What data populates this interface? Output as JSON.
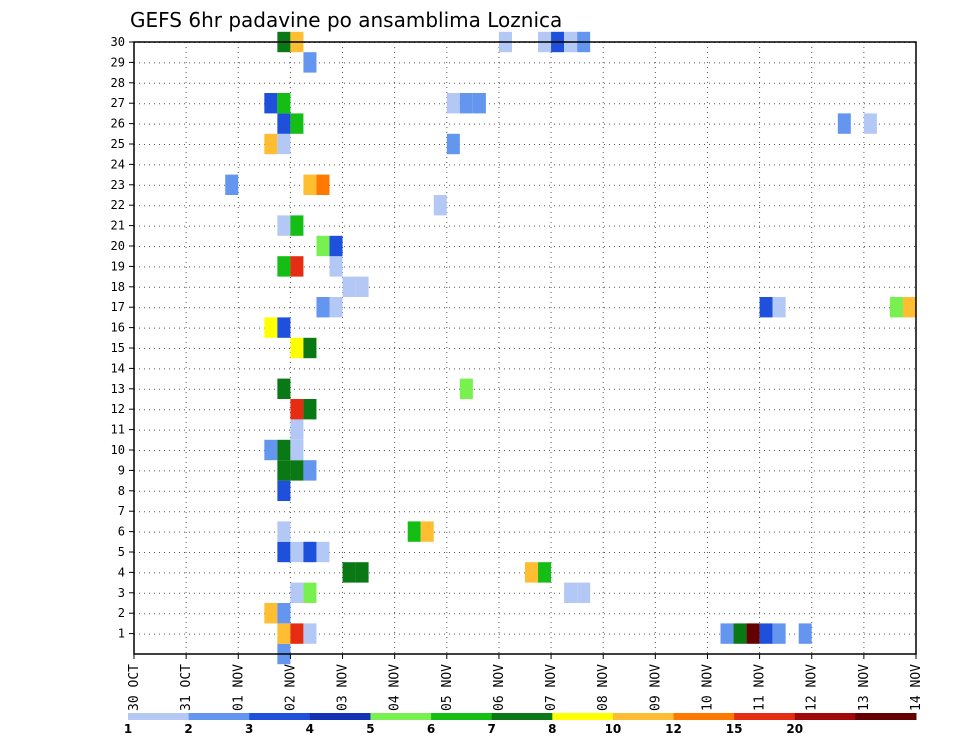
{
  "chart_data": {
    "type": "heatmap",
    "title": "GEFS 6hr padavine po ansamblima Loznica",
    "y_ticks": [
      "1",
      "2",
      "3",
      "4",
      "5",
      "6",
      "7",
      "8",
      "9",
      "10",
      "11",
      "12",
      "13",
      "14",
      "15",
      "16",
      "17",
      "18",
      "19",
      "20",
      "21",
      "22",
      "23",
      "24",
      "25",
      "26",
      "27",
      "28",
      "29",
      "30"
    ],
    "x_ticks": [
      "30 OCT",
      "31 OCT",
      "01 NOV",
      "02 NOV",
      "03 NOV",
      "04 NOV",
      "05 NOV",
      "06 NOV",
      "07 NOV",
      "08 NOV",
      "09 NOV",
      "10 NOV",
      "11 NOV",
      "12 NOV",
      "13 NOV",
      "14 NOV"
    ],
    "grid": true,
    "colorbar": {
      "labels": [
        "1",
        "2",
        "3",
        "4",
        "5",
        "6",
        "7",
        "8",
        "10",
        "12",
        "15",
        "20"
      ],
      "colors": [
        "#b4c8f5",
        "#6496f0",
        "#1e50dc",
        "#1432b4",
        "#78f050",
        "#14be14",
        "#0a7814",
        "#ffff00",
        "#ffbe32",
        "#ff7800",
        "#e62d14",
        "#a00a0a",
        "#640000"
      ]
    },
    "cells": [
      {
        "member": 0,
        "step": 11,
        "color": "#6496f0"
      },
      {
        "member": 1,
        "step": 11,
        "color": "#ffbe32"
      },
      {
        "member": 1,
        "step": 12,
        "color": "#e62d14"
      },
      {
        "member": 1,
        "step": 13,
        "color": "#b4c8f5"
      },
      {
        "member": 1,
        "step": 45,
        "color": "#6496f0"
      },
      {
        "member": 1,
        "step": 46,
        "color": "#0a7814"
      },
      {
        "member": 1,
        "step": 47,
        "color": "#640000"
      },
      {
        "member": 1,
        "step": 48,
        "color": "#1e50dc"
      },
      {
        "member": 1,
        "step": 49,
        "color": "#6496f0"
      },
      {
        "member": 1,
        "step": 51,
        "color": "#6496f0"
      },
      {
        "member": 2,
        "step": 10,
        "color": "#ffbe32"
      },
      {
        "member": 2,
        "step": 11,
        "color": "#6496f0"
      },
      {
        "member": 3,
        "step": 12,
        "color": "#b4c8f5"
      },
      {
        "member": 3,
        "step": 13,
        "color": "#78f050"
      },
      {
        "member": 3,
        "step": 33,
        "color": "#b4c8f5"
      },
      {
        "member": 3,
        "step": 34,
        "color": "#b4c8f5"
      },
      {
        "member": 4,
        "step": 16,
        "color": "#0a7814"
      },
      {
        "member": 4,
        "step": 17,
        "color": "#0a7814"
      },
      {
        "member": 4,
        "step": 30,
        "color": "#ffbe32"
      },
      {
        "member": 4,
        "step": 31,
        "color": "#14be14"
      },
      {
        "member": 5,
        "step": 11,
        "color": "#1e50dc"
      },
      {
        "member": 5,
        "step": 12,
        "color": "#b4c8f5"
      },
      {
        "member": 5,
        "step": 13,
        "color": "#1e50dc"
      },
      {
        "member": 5,
        "step": 14,
        "color": "#b4c8f5"
      },
      {
        "member": 6,
        "step": 11,
        "color": "#b4c8f5"
      },
      {
        "member": 6,
        "step": 21,
        "color": "#14be14"
      },
      {
        "member": 6,
        "step": 22,
        "color": "#ffbe32"
      },
      {
        "member": 8,
        "step": 11,
        "color": "#1e50dc"
      },
      {
        "member": 9,
        "step": 11,
        "color": "#0a7814"
      },
      {
        "member": 9,
        "step": 12,
        "color": "#0a7814"
      },
      {
        "member": 9,
        "step": 13,
        "color": "#6496f0"
      },
      {
        "member": 10,
        "step": 10,
        "color": "#6496f0"
      },
      {
        "member": 10,
        "step": 11,
        "color": "#0a7814"
      },
      {
        "member": 10,
        "step": 12,
        "color": "#b4c8f5"
      },
      {
        "member": 11,
        "step": 12,
        "color": "#b4c8f5"
      },
      {
        "member": 12,
        "step": 12,
        "color": "#e62d14"
      },
      {
        "member": 12,
        "step": 13,
        "color": "#0a7814"
      },
      {
        "member": 13,
        "step": 11,
        "color": "#0a7814"
      },
      {
        "member": 13,
        "step": 25,
        "color": "#78f050"
      },
      {
        "member": 15,
        "step": 12,
        "color": "#ffff00"
      },
      {
        "member": 15,
        "step": 13,
        "color": "#0a7814"
      },
      {
        "member": 16,
        "step": 10,
        "color": "#ffff00"
      },
      {
        "member": 16,
        "step": 11,
        "color": "#1e50dc"
      },
      {
        "member": 17,
        "step": 14,
        "color": "#6496f0"
      },
      {
        "member": 17,
        "step": 15,
        "color": "#b4c8f5"
      },
      {
        "member": 17,
        "step": 48,
        "color": "#1e50dc"
      },
      {
        "member": 17,
        "step": 49,
        "color": "#b4c8f5"
      },
      {
        "member": 17,
        "step": 58,
        "color": "#78f050"
      },
      {
        "member": 17,
        "step": 59,
        "color": "#ffbe32"
      },
      {
        "member": 18,
        "step": 16,
        "color": "#b4c8f5"
      },
      {
        "member": 18,
        "step": 17,
        "color": "#b4c8f5"
      },
      {
        "member": 19,
        "step": 11,
        "color": "#14be14"
      },
      {
        "member": 19,
        "step": 12,
        "color": "#e62d14"
      },
      {
        "member": 19,
        "step": 15,
        "color": "#b4c8f5"
      },
      {
        "member": 20,
        "step": 14,
        "color": "#78f050"
      },
      {
        "member": 20,
        "step": 15,
        "color": "#1e50dc"
      },
      {
        "member": 21,
        "step": 11,
        "color": "#b4c8f5"
      },
      {
        "member": 21,
        "step": 12,
        "color": "#14be14"
      },
      {
        "member": 22,
        "step": 23,
        "color": "#b4c8f5"
      },
      {
        "member": 23,
        "step": 7,
        "color": "#6496f0"
      },
      {
        "member": 23,
        "step": 13,
        "color": "#ffbe32"
      },
      {
        "member": 23,
        "step": 14,
        "color": "#ff7800"
      },
      {
        "member": 25,
        "step": 10,
        "color": "#ffbe32"
      },
      {
        "member": 25,
        "step": 11,
        "color": "#b4c8f5"
      },
      {
        "member": 25,
        "step": 24,
        "color": "#6496f0"
      },
      {
        "member": 26,
        "step": 11,
        "color": "#1e50dc"
      },
      {
        "member": 26,
        "step": 12,
        "color": "#14be14"
      },
      {
        "member": 26,
        "step": 54,
        "color": "#6496f0"
      },
      {
        "member": 26,
        "step": 56,
        "color": "#b4c8f5"
      },
      {
        "member": 27,
        "step": 10,
        "color": "#1e50dc"
      },
      {
        "member": 27,
        "step": 11,
        "color": "#14be14"
      },
      {
        "member": 27,
        "step": 24,
        "color": "#b4c8f5"
      },
      {
        "member": 27,
        "step": 25,
        "color": "#6496f0"
      },
      {
        "member": 27,
        "step": 26,
        "color": "#6496f0"
      },
      {
        "member": 29,
        "step": 13,
        "color": "#6496f0"
      },
      {
        "member": 30,
        "step": 11,
        "color": "#0a7814"
      },
      {
        "member": 30,
        "step": 12,
        "color": "#ffbe32"
      },
      {
        "member": 30,
        "step": 28,
        "color": "#b4c8f5"
      },
      {
        "member": 30,
        "step": 31,
        "color": "#b4c8f5"
      },
      {
        "member": 30,
        "step": 32,
        "color": "#1e50dc"
      },
      {
        "member": 30,
        "step": 33,
        "color": "#b4c8f5"
      },
      {
        "member": 30,
        "step": 34,
        "color": "#6496f0"
      }
    ]
  }
}
